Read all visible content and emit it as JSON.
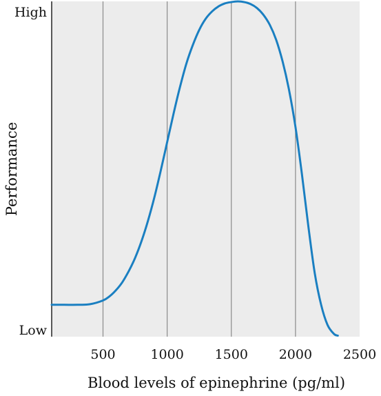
{
  "chart_data": {
    "type": "line",
    "title": "",
    "xlabel": "Blood levels of epinephrine (pg/ml)",
    "ylabel": "Performance",
    "xlim": [
      100,
      2500
    ],
    "ylim": [
      0,
      100
    ],
    "x_ticks": [
      500,
      1000,
      1500,
      2000,
      2500
    ],
    "x_tick_labels": [
      "500",
      "1000",
      "1500",
      "2000",
      "2500"
    ],
    "y_ticks": [
      0,
      100
    ],
    "y_tick_labels": [
      "Low",
      "High"
    ],
    "grid": "vertical",
    "colors": {
      "line": "#1a7fc1",
      "plot_bg": "#ececec",
      "grid": "#8a8a8a"
    },
    "series": [
      {
        "x": [
          100,
          200,
          300,
          400,
          500,
          550,
          600,
          650,
          700,
          750,
          800,
          850,
          900,
          950,
          1000,
          1050,
          1100,
          1150,
          1200,
          1250,
          1300,
          1350,
          1400,
          1450,
          1500,
          1550,
          1600,
          1650,
          1700,
          1750,
          1800,
          1850,
          1900,
          1950,
          2000,
          2050,
          2100,
          2150,
          2200,
          2250,
          2300,
          2330
        ],
        "y": [
          9.5,
          9.5,
          9.5,
          9.7,
          10.8,
          12.0,
          13.8,
          16.2,
          19.5,
          23.5,
          28.5,
          34.5,
          41.5,
          49.5,
          58.0,
          66.5,
          74.5,
          81.5,
          87.0,
          91.5,
          94.8,
          97.0,
          98.5,
          99.4,
          99.8,
          100.0,
          99.8,
          99.2,
          98.0,
          96.0,
          93.0,
          88.5,
          82.0,
          73.5,
          62.5,
          48.5,
          33.0,
          19.0,
          9.5,
          3.5,
          0.8,
          0.3
        ]
      }
    ]
  }
}
